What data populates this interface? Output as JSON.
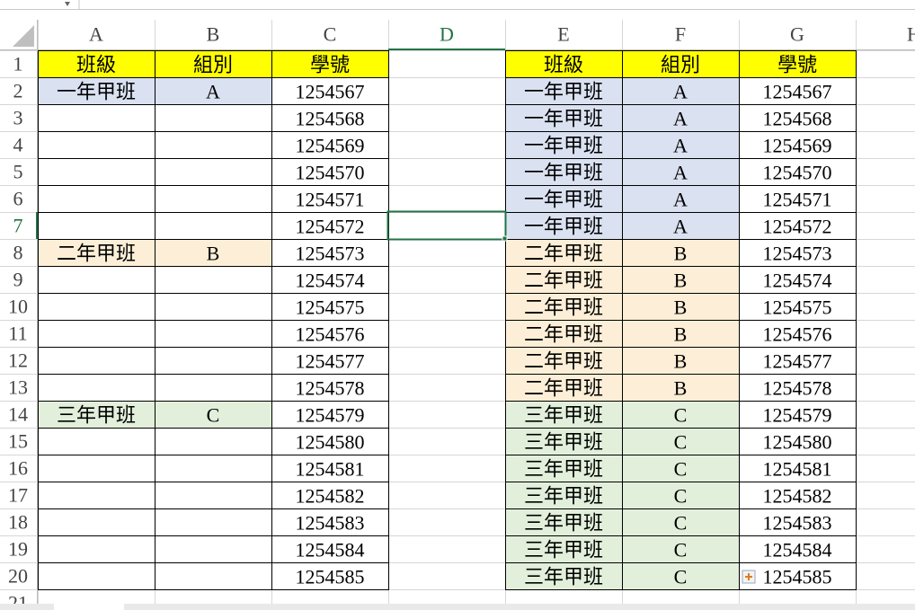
{
  "columns": [
    "A",
    "B",
    "C",
    "D",
    "E",
    "F",
    "G",
    "H"
  ],
  "rows": [
    1,
    2,
    3,
    4,
    5,
    6,
    7,
    8,
    9,
    10,
    11,
    12,
    13,
    14,
    15,
    16,
    17,
    18,
    19,
    20,
    21
  ],
  "headers": [
    "班級",
    "組別",
    "學號"
  ],
  "header_color": "#ffff00",
  "groups": [
    {
      "class": "一年甲班",
      "group": "A",
      "color": "#dae1f1",
      "ids": [
        1254567,
        1254568,
        1254569,
        1254570,
        1254571,
        1254572
      ]
    },
    {
      "class": "二年甲班",
      "group": "B",
      "color": "#fdefd7",
      "ids": [
        1254573,
        1254574,
        1254575,
        1254576,
        1254577,
        1254578
      ]
    },
    {
      "class": "三年甲班",
      "group": "C",
      "color": "#e2efdb",
      "ids": [
        1254579,
        1254580,
        1254581,
        1254582,
        1254583,
        1254584,
        1254585
      ]
    }
  ]
}
